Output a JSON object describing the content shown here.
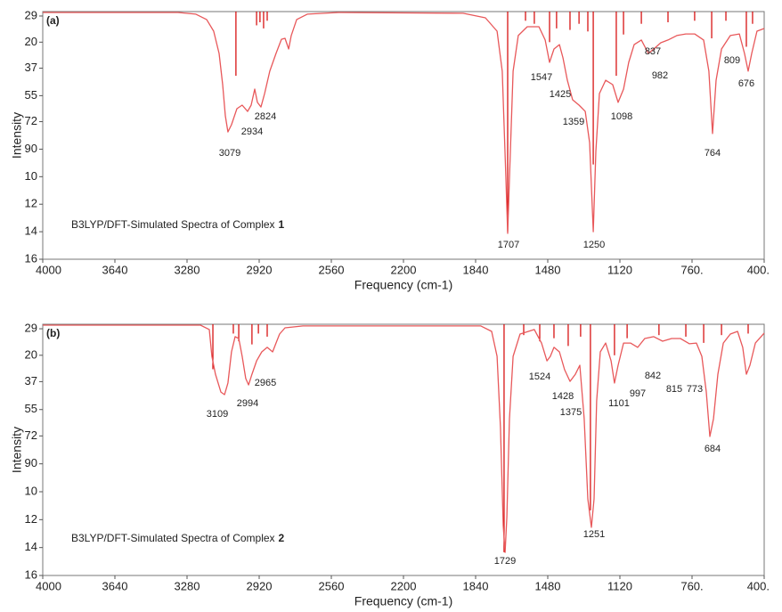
{
  "chart_data": [
    {
      "type": "line",
      "panel_label": "(a)",
      "annotation": "B3LYP/DFT-Simulated Spectra of Complex",
      "annotation_number": "1",
      "xlabel": "Frequency (cm-1)",
      "ylabel": "Intensity",
      "y_inverted": true,
      "xlim": [
        4000,
        400
      ],
      "ylim": [
        0,
        1620
      ],
      "xticks": [
        4000,
        3640,
        3280,
        2920,
        2560,
        2200,
        1840,
        1480,
        1120,
        {
          "value": 760,
          "label": "760."
        },
        {
          "value": 400,
          "label": "400."
        }
      ],
      "yticks": [
        29,
        {
          "value": 200,
          "label": "20"
        },
        {
          "value": 370,
          "label": "37"
        },
        {
          "value": 550,
          "label": "55"
        },
        {
          "value": 720,
          "label": "72"
        },
        {
          "value": 900,
          "label": "90"
        },
        {
          "value": 1080,
          "label": "10"
        },
        {
          "value": 1260,
          "label": "12"
        },
        {
          "value": 1440,
          "label": "14"
        },
        {
          "value": 1620,
          "label": "16"
        }
      ],
      "series": [
        {
          "color": "#e8585a",
          "x": [
            4000,
            3325,
            3236,
            3182,
            3147,
            3120,
            3102,
            3089,
            3076,
            3058,
            3031,
            3005,
            2978,
            2960,
            2942,
            2929,
            2911,
            2893,
            2867,
            2836,
            2809,
            2791,
            2773,
            2760,
            2733,
            2680,
            2524,
            1902,
            1791,
            1733,
            1707,
            1689,
            1680,
            1671,
            1653,
            1627,
            1582,
            1524,
            1493,
            1471,
            1449,
            1422,
            1404,
            1382,
            1356,
            1324,
            1293,
            1271,
            1253,
            1240,
            1222,
            1191,
            1156,
            1129,
            1102,
            1076,
            1049,
            1013,
            978,
            951,
            916,
            880,
            836,
            791,
            747,
            702,
            676,
            658,
            640,
            613,
            569,
            524,
            498,
            480,
            462,
            436,
            400
          ],
          "values": [
            6,
            6,
            17,
            52,
            128,
            274,
            478,
            682,
            787,
            740,
            635,
            612,
            653,
            612,
            507,
            594,
            624,
            536,
            390,
            274,
            181,
            175,
            245,
            157,
            52,
            17,
            6,
            11,
            41,
            128,
            390,
            1090,
            1451,
            1090,
            390,
            157,
            99,
            99,
            186,
            332,
            245,
            216,
            303,
            449,
            577,
            612,
            653,
            857,
            1440,
            915,
            536,
            449,
            478,
            594,
            507,
            332,
            216,
            186,
            274,
            245,
            204,
            186,
            157,
            146,
            146,
            186,
            390,
            798,
            449,
            245,
            157,
            146,
            274,
            390,
            274,
            128,
            111
          ]
        }
      ],
      "sticks": {
        "color": "#d40000",
        "x": [
          3036,
          2933,
          2916,
          2898,
          2880,
          1680,
          1591,
          1547,
          1471,
          1436,
          1369,
          1324,
          1280,
          1253,
          1138,
          1102,
          1013,
          880,
          747,
          662,
          591,
          489,
          458
        ],
        "values": [
          420,
          90,
          70,
          110,
          60,
          1440,
          60,
          80,
          200,
          110,
          120,
          80,
          130,
          1000,
          420,
          150,
          80,
          70,
          60,
          175,
          60,
          230,
          80
        ]
      },
      "peak_labels": [
        "3079",
        "2934",
        "2824",
        "1707",
        "1547",
        "1425",
        "1359",
        "1250",
        "1098",
        "982",
        "837",
        "809",
        "764",
        "676"
      ]
    },
    {
      "type": "line",
      "panel_label": "(b)",
      "annotation": "B3LYP/DFT-Simulated Spectra of Complex",
      "annotation_number": "2",
      "xlabel": "Frequency (cm-1)",
      "ylabel": "Intensity",
      "y_inverted": true,
      "xlim": [
        4000,
        400
      ],
      "ylim": [
        0,
        1620
      ],
      "xticks": [
        4000,
        3640,
        3280,
        2920,
        2560,
        2200,
        1840,
        1480,
        1120,
        {
          "value": 760,
          "label": "760."
        },
        {
          "value": 400,
          "label": "400."
        }
      ],
      "yticks": [
        29,
        {
          "value": 200,
          "label": "20"
        },
        {
          "value": 370,
          "label": "37"
        },
        {
          "value": 550,
          "label": "55"
        },
        {
          "value": 720,
          "label": "72"
        },
        {
          "value": 900,
          "label": "90"
        },
        {
          "value": 1080,
          "label": "10"
        },
        {
          "value": 1260,
          "label": "12"
        },
        {
          "value": 1440,
          "label": "14"
        },
        {
          "value": 1620,
          "label": "16"
        }
      ],
      "series": [
        {
          "color": "#e8585a",
          "x": [
            4000,
            3213,
            3169,
            3156,
            3138,
            3111,
            3093,
            3076,
            3058,
            3040,
            3022,
            3005,
            2987,
            2973,
            2956,
            2933,
            2907,
            2880,
            2853,
            2836,
            2818,
            2791,
            2702,
            1814,
            1760,
            1733,
            1716,
            1702,
            1693,
            1684,
            1671,
            1653,
            1618,
            1547,
            1511,
            1484,
            1467,
            1449,
            1422,
            1396,
            1369,
            1342,
            1320,
            1298,
            1280,
            1262,
            1249,
            1236,
            1218,
            1191,
            1164,
            1147,
            1129,
            1102,
            1067,
            1031,
            996,
            951,
            907,
            862,
            818,
            773,
            738,
            711,
            689,
            671,
            653,
            631,
            604,
            569,
            533,
            507,
            489,
            471,
            444,
            400
          ],
          "values": [
            6,
            6,
            34,
            207,
            322,
            437,
            454,
            379,
            178,
            80,
            92,
            207,
            350,
            391,
            322,
            236,
            178,
            149,
            178,
            121,
            63,
            23,
            11,
            11,
            46,
            207,
            666,
            1298,
            1471,
            1241,
            609,
            207,
            63,
            34,
            121,
            236,
            207,
            149,
            178,
            293,
            368,
            322,
            264,
            609,
            1126,
            1310,
            1126,
            494,
            178,
            121,
            236,
            379,
            264,
            121,
            121,
            149,
            92,
            80,
            109,
            92,
            92,
            126,
            121,
            207,
            437,
            724,
            609,
            322,
            121,
            63,
            46,
            149,
            322,
            264,
            121,
            57
          ]
        }
      ],
      "sticks": {
        "color": "#d40000",
        "x": [
          3151,
          3049,
          3022,
          2956,
          2924,
          2880,
          1698,
          1600,
          1520,
          1449,
          1378,
          1316,
          1267,
          1147,
          1084,
          925,
          791,
          702,
          613,
          480
        ],
        "values": [
          290,
          60,
          110,
          130,
          60,
          80,
          1470,
          70,
          110,
          90,
          140,
          80,
          1200,
          200,
          90,
          70,
          80,
          120,
          70,
          60
        ]
      },
      "peak_labels": [
        "3109",
        "2994",
        "2965",
        "1729",
        "1524",
        "1428",
        "1375",
        "1251",
        "1101",
        "997",
        "842",
        "815",
        "773",
        "684"
      ]
    }
  ]
}
